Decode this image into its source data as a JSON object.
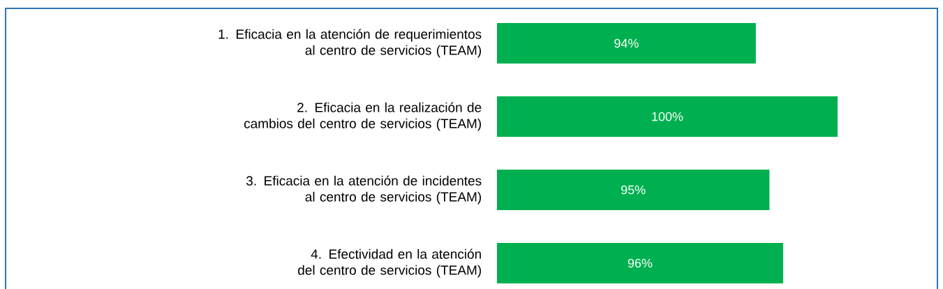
{
  "chart_data": {
    "type": "bar",
    "orientation": "horizontal",
    "categories": [
      "1. Eficacia en la atención de requerimientos al centro de servicios (TEAM)",
      "2. Eficacia en la realización de cambios del centro de servicios (TEAM)",
      "3. Eficacia en la atención de incidentes al centro de servicios (TEAM)",
      "4. Efectividad en la atención del centro de servicios (TEAM)"
    ],
    "values": [
      94,
      100,
      95,
      96
    ],
    "value_labels": [
      "94%",
      "100%",
      "95%",
      "96%"
    ],
    "color": "#00b050",
    "xlim": [
      75,
      100
    ]
  }
}
